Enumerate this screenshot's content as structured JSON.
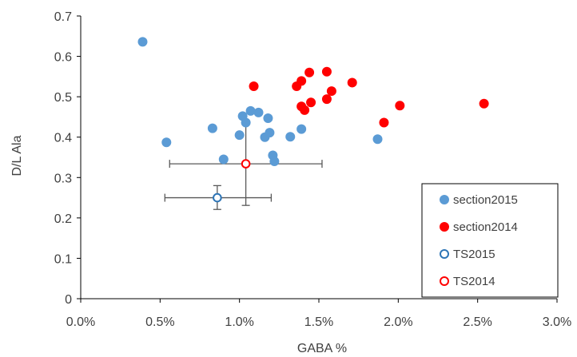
{
  "chart_data": {
    "type": "scatter",
    "xlabel": "GABA %",
    "ylabel": "D/L Ala",
    "xlim": [
      0,
      0.03
    ],
    "ylim": [
      0,
      0.7
    ],
    "x_ticks": [
      0,
      0.005,
      0.01,
      0.015,
      0.02,
      0.025,
      0.03
    ],
    "x_tick_labels": [
      "0.0%",
      "0.5%",
      "1.0%",
      "1.5%",
      "2.0%",
      "2.5%",
      "3.0%"
    ],
    "y_ticks": [
      0,
      0.1,
      0.2,
      0.3,
      0.4,
      0.5,
      0.6,
      0.7
    ],
    "y_tick_labels": [
      "0",
      "0.1",
      "0.2",
      "0.3",
      "0.4",
      "0.5",
      "0.6",
      "0.7"
    ],
    "grid": false,
    "legend_position": "bottom-right",
    "series": [
      {
        "name": "section2015",
        "marker": "filled-circle",
        "color": "#5B9BD5",
        "points": [
          [
            0.0039,
            0.636
          ],
          [
            0.0054,
            0.387
          ],
          [
            0.0083,
            0.422
          ],
          [
            0.009,
            0.345
          ],
          [
            0.01,
            0.405
          ],
          [
            0.0102,
            0.452
          ],
          [
            0.0104,
            0.436
          ],
          [
            0.0107,
            0.465
          ],
          [
            0.0112,
            0.461
          ],
          [
            0.0116,
            0.4
          ],
          [
            0.0118,
            0.447
          ],
          [
            0.0119,
            0.411
          ],
          [
            0.0121,
            0.355
          ],
          [
            0.0122,
            0.34
          ],
          [
            0.0132,
            0.401
          ],
          [
            0.0139,
            0.42
          ],
          [
            0.0187,
            0.395
          ]
        ]
      },
      {
        "name": "section2014",
        "marker": "filled-circle",
        "color": "#FF0000",
        "points": [
          [
            0.0109,
            0.526
          ],
          [
            0.0136,
            0.526
          ],
          [
            0.0139,
            0.539
          ],
          [
            0.0139,
            0.476
          ],
          [
            0.0141,
            0.467
          ],
          [
            0.0144,
            0.56
          ],
          [
            0.0145,
            0.486
          ],
          [
            0.0155,
            0.562
          ],
          [
            0.0155,
            0.494
          ],
          [
            0.0158,
            0.514
          ],
          [
            0.0171,
            0.535
          ],
          [
            0.0191,
            0.436
          ],
          [
            0.0201,
            0.478
          ],
          [
            0.0254,
            0.483
          ]
        ]
      },
      {
        "name": "TS2015",
        "marker": "open-circle",
        "color": "#2E75B6",
        "points": [
          [
            0.0086,
            0.25
          ]
        ],
        "x_error": [
          [
            0.0053,
            0.012
          ]
        ],
        "y_error": [
          [
            0.221,
            0.28
          ]
        ]
      },
      {
        "name": "TS2014",
        "marker": "open-circle",
        "color": "#FF0000",
        "points": [
          [
            0.0104,
            0.334
          ]
        ],
        "x_error": [
          [
            0.0056,
            0.0152
          ]
        ],
        "y_error": [
          [
            0.231,
            0.437
          ]
        ]
      }
    ]
  },
  "colors": {
    "axis": "#000000",
    "error_bar": "#595959",
    "text": "#404040"
  }
}
